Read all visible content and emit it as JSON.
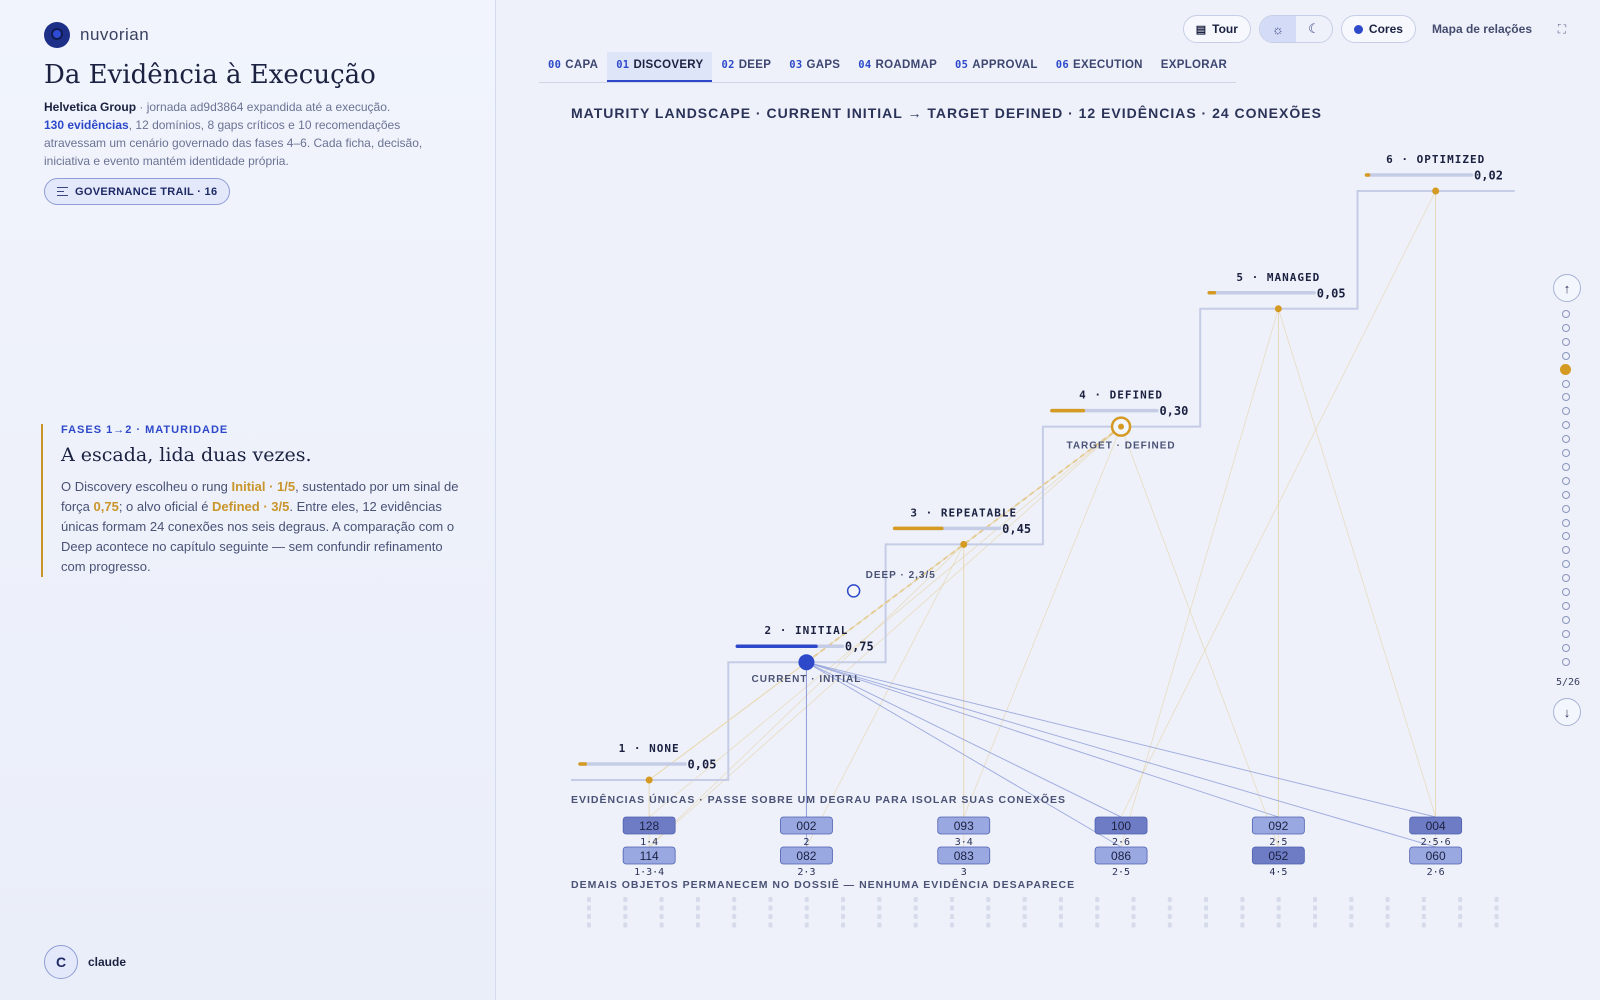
{
  "brand": {
    "name": "nuvorian",
    "logo_icon": "nuvorian-logo-icon"
  },
  "header": {
    "title": "Da Evidência à Execução",
    "intro_company": "Helvetica Group",
    "intro_rest1": " · jornada ad9d3864 expandida até a execução.",
    "intro_count": "130 evidências",
    "intro_rest2": ", 12 domínios, 8 gaps críticos e 10 recomendações atravessam um cenário governado das fases 4–6. Cada ficha, decisão, iniciativa e evento mantém identidade própria.",
    "trail_label": "GOVERNANCE TRAIL · 16"
  },
  "phase": {
    "kicker": "FASES 1→2 · MATURIDADE",
    "title": "A escada, lida duas vezes.",
    "t1": "O Discovery escolheu o rung ",
    "g1": "Initial · 1/5",
    "t2": ", sustentado por um sinal de força ",
    "g2": "0,75",
    "t3": "; o alvo oficial é ",
    "g3": "Defined · 3/5",
    "t4": ". Entre eles, 12 evidências únicas formam 24 conexões nos seis degraus. A comparação com o Deep acontece no capítulo seguinte — sem confundir refinamento com progresso."
  },
  "user": {
    "initial": "C",
    "name": "claude"
  },
  "toolbar": {
    "tour_label": "Tour",
    "theme_light_icon": "sun-icon",
    "theme_dark_icon": "moon-icon",
    "colors_label": "Cores",
    "relations_label": "Mapa de relações",
    "fullscreen_icon": "fullscreen-icon"
  },
  "tabs": [
    {
      "num": "00",
      "label": "CAPA"
    },
    {
      "num": "01",
      "label": "DISCOVERY",
      "active": true
    },
    {
      "num": "02",
      "label": "DEEP"
    },
    {
      "num": "03",
      "label": "GAPS"
    },
    {
      "num": "04",
      "label": "ROADMAP"
    },
    {
      "num": "05",
      "label": "APPROVAL"
    },
    {
      "num": "06",
      "label": "EXECUTION"
    },
    {
      "num": "",
      "label": "EXPLORAR"
    }
  ],
  "maturity_heading": "MATURITY LANDSCAPE · CURRENT INITIAL → TARGET DEFINED · 12 EVIDÊNCIAS · 24 CONEXÕES",
  "chart_data": {
    "type": "staircase",
    "levels": [
      {
        "label": "1 · NONE",
        "value": 0.05,
        "value_label": "0,05"
      },
      {
        "label": "2 · INITIAL",
        "value": 0.75,
        "value_label": "0,75"
      },
      {
        "label": "3 · REPEATABLE",
        "value": 0.45,
        "value_label": "0,45"
      },
      {
        "label": "4 · DEFINED",
        "value": 0.3,
        "value_label": "0,30"
      },
      {
        "label": "5 · MANAGED",
        "value": 0.05,
        "value_label": "0,05"
      },
      {
        "label": "6 · OPTIMIZED",
        "value": 0.02,
        "value_label": "0,02"
      }
    ],
    "current": {
      "level": 2,
      "label": "CURRENT · INITIAL"
    },
    "target": {
      "level": 4,
      "label": "TARGET · DEFINED"
    },
    "deep": {
      "value": 2.3,
      "label": "DEEP · 2,3/5"
    },
    "colors": {
      "primary": "#2d49c9",
      "accent": "#d49a22",
      "muted": "#c5cde6"
    }
  },
  "evidence_heading": "EVIDÊNCIAS ÚNICAS · PASSE SOBRE UM DEGRAU PARA ISOLAR SUAS CONEXÕES",
  "evidence": [
    [
      {
        "id": "128",
        "levels": "1·4"
      },
      {
        "id": "114",
        "levels": "1·3·4"
      }
    ],
    [
      {
        "id": "002",
        "levels": "2"
      },
      {
        "id": "082",
        "levels": "2·3"
      }
    ],
    [
      {
        "id": "093",
        "levels": "3·4"
      },
      {
        "id": "083",
        "levels": "3"
      }
    ],
    [
      {
        "id": "100",
        "levels": "2·6"
      },
      {
        "id": "086",
        "levels": "2·5"
      }
    ],
    [
      {
        "id": "092",
        "levels": "2·5"
      },
      {
        "id": "052",
        "levels": "4·5"
      }
    ],
    [
      {
        "id": "004",
        "levels": "2·5·6"
      },
      {
        "id": "060",
        "levels": "2·6"
      }
    ]
  ],
  "footer_note": "DEMAIS OBJETOS PERMANECEM NO DOSSIÊ — NENHUMA EVIDÊNCIA DESAPARECE",
  "rail": {
    "up_icon": "arrow-up-icon",
    "down_icon": "arrow-down-icon",
    "counter": "5/26",
    "total": 26,
    "current": 5
  }
}
